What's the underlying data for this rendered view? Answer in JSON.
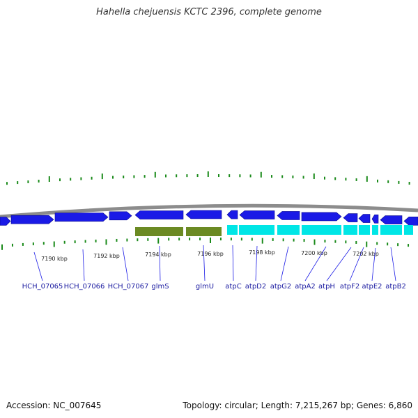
{
  "title": "Hahella chejuensis KCTC 2396, complete genome",
  "footer": {
    "accession": "Accession: NC_007645",
    "summary": "Topology: circular; Length: 7,215,267 bp; Genes: 6,860"
  },
  "colors": {
    "backbone": "#8c8c8c",
    "tick": "#1a8a1a",
    "gene_blue": "#1a1ae6",
    "rrna_olive": "#6b8a23",
    "cyan_track": "#00e6e6",
    "label": "#1a1aa0"
  },
  "scale": {
    "unit": "kbp",
    "tick_labels": [
      "7190 kbp",
      "7192 kbp",
      "7194 kbp",
      "7196 kbp",
      "7198 kbp",
      "7200 kbp",
      "7202 kbp"
    ]
  },
  "genes": [
    "HCH_07065",
    "HCH_07066",
    "HCH_07067",
    "glmS",
    "glmU",
    "atpC",
    "atpD2",
    "atpG2",
    "atpA2",
    "atpH",
    "atpF2",
    "atpE2",
    "atpB2"
  ]
}
